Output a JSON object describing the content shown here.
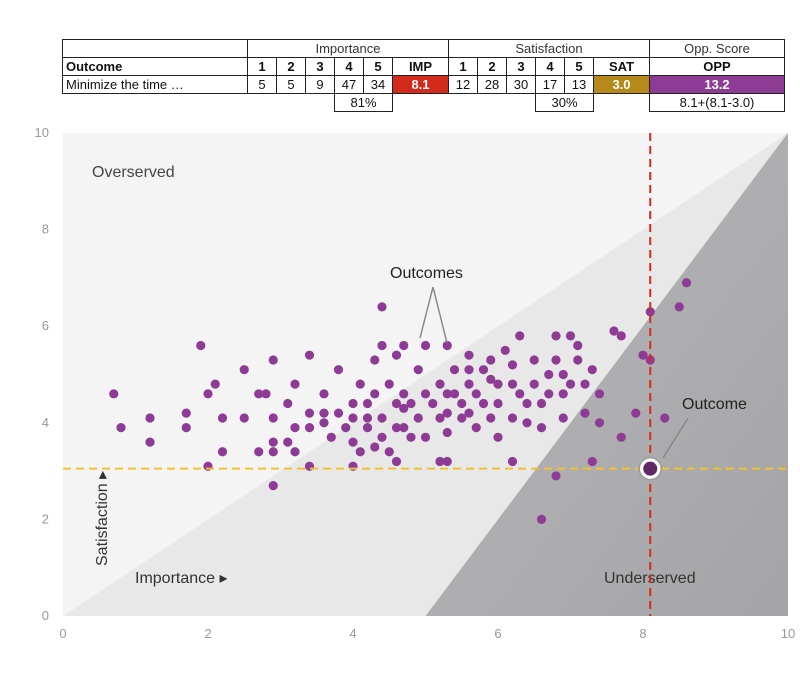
{
  "table": {
    "group_headers": {
      "importance": "Importance",
      "satisfaction": "Satisfaction",
      "opp_score": "Opp. Score"
    },
    "column_headers": {
      "outcome": "Outcome",
      "imp_scale": [
        "1",
        "2",
        "3",
        "4",
        "5"
      ],
      "imp": "IMP",
      "sat_scale": [
        "1",
        "2",
        "3",
        "4",
        "5"
      ],
      "sat": "SAT",
      "opp": "OPP"
    },
    "row": {
      "outcome": "Minimize the time …",
      "importance_counts": [
        "5",
        "5",
        "9",
        "47",
        "34"
      ],
      "imp_value": "8.1",
      "satisfaction_counts": [
        "12",
        "28",
        "30",
        "17",
        "13"
      ],
      "sat_value": "3.0",
      "opp_value": "13.2"
    },
    "footer": {
      "importance_top2": "81%",
      "satisfaction_top2": "30%",
      "opp_formula": "8.1+(8.1-3.0)"
    }
  },
  "colors": {
    "imp": "#d42a1c",
    "sat": "#b58a1a",
    "opp": "#8e3b95",
    "points": "#8e3b95",
    "vline": "#d42a1c",
    "hline": "#f2c12e",
    "overserved_region": "#e8e8e8",
    "plot_bg": "#f4f4f4",
    "underserved_region": "#a9a9ab"
  },
  "chart_data": {
    "type": "scatter",
    "title": "",
    "xlabel": "Importance ▸",
    "ylabel": "Satisfaction ▸",
    "xlim": [
      0,
      10
    ],
    "ylim": [
      0,
      10
    ],
    "x_ticks": [
      "0",
      "2",
      "4",
      "6",
      "8",
      "10"
    ],
    "y_ticks": [
      "0",
      "2",
      "4",
      "6",
      "8",
      "10"
    ],
    "region_labels": {
      "overserved": "Overserved",
      "underserved": "Underserved"
    },
    "annotations": {
      "outcomes": "Outcomes",
      "outcome": "Outcome"
    },
    "threshold_lines": {
      "importance": 8.1,
      "satisfaction": 3.05
    },
    "highlight": {
      "x": 8.1,
      "y": 3.05
    },
    "points": [
      [
        0.7,
        4.6
      ],
      [
        0.8,
        3.9
      ],
      [
        1.2,
        4.1
      ],
      [
        1.2,
        3.6
      ],
      [
        1.7,
        4.2
      ],
      [
        1.7,
        3.9
      ],
      [
        1.9,
        5.6
      ],
      [
        2.0,
        4.6
      ],
      [
        2.0,
        3.1
      ],
      [
        2.1,
        4.8
      ],
      [
        2.2,
        4.1
      ],
      [
        2.2,
        3.4
      ],
      [
        2.5,
        5.1
      ],
      [
        2.5,
        4.1
      ],
      [
        2.7,
        4.6
      ],
      [
        2.7,
        3.4
      ],
      [
        2.8,
        4.6
      ],
      [
        2.9,
        5.3
      ],
      [
        2.9,
        4.1
      ],
      [
        2.9,
        3.6
      ],
      [
        2.9,
        3.4
      ],
      [
        2.9,
        2.7
      ],
      [
        3.1,
        4.4
      ],
      [
        3.1,
        3.6
      ],
      [
        3.2,
        4.8
      ],
      [
        3.2,
        3.9
      ],
      [
        3.2,
        3.4
      ],
      [
        3.4,
        5.4
      ],
      [
        3.4,
        4.2
      ],
      [
        3.4,
        3.9
      ],
      [
        3.4,
        3.1
      ],
      [
        3.6,
        4.6
      ],
      [
        3.6,
        4.2
      ],
      [
        3.6,
        4.0
      ],
      [
        3.7,
        3.7
      ],
      [
        3.8,
        5.1
      ],
      [
        3.8,
        4.2
      ],
      [
        3.9,
        3.9
      ],
      [
        4.0,
        4.4
      ],
      [
        4.0,
        4.1
      ],
      [
        4.0,
        3.6
      ],
      [
        4.0,
        3.1
      ],
      [
        4.1,
        4.8
      ],
      [
        4.1,
        3.4
      ],
      [
        4.2,
        4.4
      ],
      [
        4.2,
        4.1
      ],
      [
        4.2,
        3.9
      ],
      [
        4.3,
        5.3
      ],
      [
        4.3,
        4.6
      ],
      [
        4.3,
        3.5
      ],
      [
        4.4,
        6.4
      ],
      [
        4.4,
        5.6
      ],
      [
        4.4,
        4.1
      ],
      [
        4.4,
        3.7
      ],
      [
        4.5,
        4.8
      ],
      [
        4.5,
        3.4
      ],
      [
        4.6,
        5.4
      ],
      [
        4.6,
        4.4
      ],
      [
        4.6,
        3.9
      ],
      [
        4.6,
        3.2
      ],
      [
        4.7,
        5.6
      ],
      [
        4.7,
        4.6
      ],
      [
        4.7,
        4.3
      ],
      [
        4.7,
        3.9
      ],
      [
        4.8,
        4.4
      ],
      [
        4.8,
        3.7
      ],
      [
        4.9,
        5.1
      ],
      [
        4.9,
        4.1
      ],
      [
        5.0,
        5.6
      ],
      [
        5.0,
        4.6
      ],
      [
        5.0,
        3.7
      ],
      [
        5.1,
        4.4
      ],
      [
        5.2,
        4.8
      ],
      [
        5.2,
        4.1
      ],
      [
        5.3,
        5.6
      ],
      [
        5.3,
        4.6
      ],
      [
        5.3,
        4.2
      ],
      [
        5.3,
        3.8
      ],
      [
        5.3,
        3.2
      ],
      [
        5.4,
        5.1
      ],
      [
        5.4,
        4.6
      ],
      [
        5.5,
        4.4
      ],
      [
        5.5,
        4.1
      ],
      [
        5.6,
        5.4
      ],
      [
        5.6,
        5.1
      ],
      [
        5.6,
        4.8
      ],
      [
        5.6,
        4.2
      ],
      [
        5.7,
        4.6
      ],
      [
        5.7,
        3.9
      ],
      [
        5.8,
        5.1
      ],
      [
        5.8,
        4.4
      ],
      [
        5.9,
        5.3
      ],
      [
        5.9,
        4.9
      ],
      [
        5.9,
        4.1
      ],
      [
        6.0,
        4.8
      ],
      [
        6.0,
        4.4
      ],
      [
        6.0,
        3.7
      ],
      [
        6.1,
        5.5
      ],
      [
        6.2,
        5.2
      ],
      [
        6.2,
        4.8
      ],
      [
        6.2,
        4.1
      ],
      [
        6.3,
        5.8
      ],
      [
        6.3,
        4.6
      ],
      [
        6.4,
        4.4
      ],
      [
        6.4,
        4.0
      ],
      [
        6.5,
        5.3
      ],
      [
        6.5,
        4.8
      ],
      [
        6.6,
        4.4
      ],
      [
        6.6,
        3.9
      ],
      [
        6.7,
        5.0
      ],
      [
        6.7,
        4.6
      ],
      [
        6.8,
        5.8
      ],
      [
        6.8,
        5.3
      ],
      [
        6.9,
        5.0
      ],
      [
        6.9,
        4.6
      ],
      [
        6.9,
        4.1
      ],
      [
        7.0,
        5.8
      ],
      [
        7.0,
        4.8
      ],
      [
        7.1,
        5.6
      ],
      [
        7.1,
        5.3
      ],
      [
        7.2,
        4.8
      ],
      [
        7.3,
        5.1
      ],
      [
        7.4,
        4.6
      ],
      [
        5.2,
        3.2
      ],
      [
        6.6,
        2.0
      ],
      [
        6.2,
        3.2
      ],
      [
        6.8,
        2.9
      ],
      [
        7.2,
        4.2
      ],
      [
        7.4,
        4.0
      ],
      [
        7.6,
        5.9
      ],
      [
        7.7,
        5.8
      ],
      [
        7.7,
        3.7
      ],
      [
        7.9,
        4.2
      ],
      [
        8.0,
        5.4
      ],
      [
        8.1,
        6.3
      ],
      [
        8.1,
        5.3
      ],
      [
        8.3,
        4.1
      ],
      [
        8.5,
        6.4
      ],
      [
        8.6,
        6.9
      ],
      [
        7.3,
        3.2
      ]
    ]
  }
}
